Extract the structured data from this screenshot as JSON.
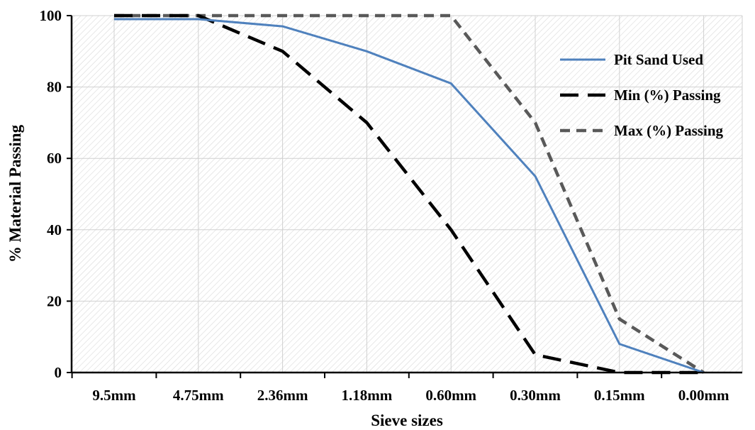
{
  "chart_data": {
    "type": "line",
    "title": "",
    "xlabel": "Sieve sizes",
    "ylabel": "% Material Passing",
    "categories": [
      "9.5mm",
      "4.75mm",
      "2.36mm",
      "1.18mm",
      "0.60mm",
      "0.30mm",
      "0.15mm",
      "0.00mm"
    ],
    "ylim": [
      0,
      100
    ],
    "yticks": [
      0,
      20,
      40,
      60,
      80,
      100
    ],
    "grid": true,
    "legend_position": "top-right",
    "series": [
      {
        "name": "Pit Sand Used",
        "values": [
          99,
          99,
          97,
          90,
          81,
          55,
          8,
          0
        ],
        "color": "#4f81bd",
        "style": "solid"
      },
      {
        "name": "Min (%) Passing",
        "values": [
          100,
          100,
          90,
          70,
          40,
          5,
          0,
          0
        ],
        "color": "#000000",
        "style": "dashed"
      },
      {
        "name": "Max (%) Passing",
        "values": [
          100,
          100,
          100,
          100,
          100,
          70,
          15,
          0
        ],
        "color": "#595959",
        "style": "dashed"
      }
    ]
  }
}
